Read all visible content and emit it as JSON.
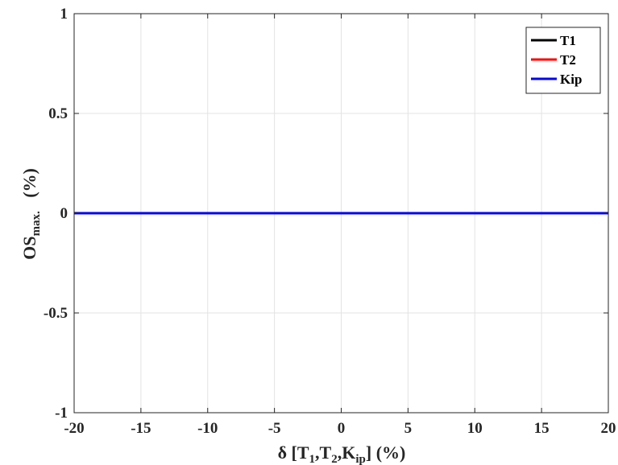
{
  "chart_data": {
    "type": "line",
    "xlabel": {
      "prefix": "δ  [T",
      "sub1": "1",
      "mid1": ",T",
      "sub2": "2",
      "mid2": ",K",
      "sub3": "ip",
      "suffix": "] (%)"
    },
    "ylabel": {
      "prefix": "OS",
      "sub": "max.",
      "suffix": "   (%)"
    },
    "xlim": [
      -20,
      20
    ],
    "ylim": [
      -1,
      1
    ],
    "xticks": [
      -20,
      -15,
      -10,
      -5,
      0,
      5,
      10,
      15,
      20
    ],
    "yticks": [
      -1,
      -0.5,
      0,
      0.5,
      1
    ],
    "grid": true,
    "legend_position": "top-right",
    "series": [
      {
        "name": "T1",
        "color": "#000000",
        "x": [
          -20,
          20
        ],
        "y": [
          0,
          0
        ]
      },
      {
        "name": "T2",
        "color": "#ff0000",
        "x": [
          -20,
          20
        ],
        "y": [
          0,
          0
        ]
      },
      {
        "name": "Kip",
        "color": "#0000ff",
        "x": [
          -20,
          20
        ],
        "y": [
          0,
          0
        ]
      }
    ]
  }
}
